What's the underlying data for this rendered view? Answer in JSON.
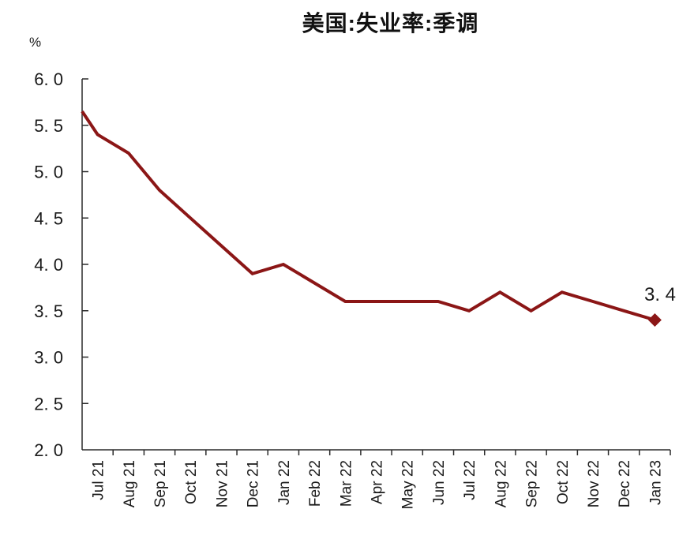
{
  "chart": {
    "title": "美国:失业率:季调",
    "unit_label": "%"
  },
  "chart_data": {
    "type": "line",
    "title": "美国:失业率:季调",
    "xlabel": "",
    "ylabel": "%",
    "categories": [
      "Jul 21",
      "Aug 21",
      "Sep 21",
      "Oct 21",
      "Nov 21",
      "Dec 21",
      "Jan 22",
      "Feb 22",
      "Mar 22",
      "Apr 22",
      "May 22",
      "Jun 22",
      "Jul 22",
      "Aug 22",
      "Sep 22",
      "Oct 22",
      "Nov 22",
      "Dec 22",
      "Jan 23"
    ],
    "series": [
      {
        "name": "美国:失业率:季调",
        "values": [
          5.4,
          5.2,
          4.8,
          4.5,
          4.2,
          3.9,
          4.0,
          3.8,
          3.6,
          3.6,
          3.6,
          3.6,
          3.5,
          3.7,
          3.5,
          3.7,
          3.6,
          3.5,
          3.4
        ]
      }
    ],
    "lead_in_edge_value": 5.65,
    "ylim": [
      2.0,
      6.0
    ],
    "y_tick_step": 0.5,
    "y_tick_values": [
      6.0,
      5.5,
      5.0,
      4.5,
      4.0,
      3.5,
      3.0,
      2.5,
      2.0
    ],
    "y_tick_labels": [
      "6. 0",
      "5. 5",
      "5. 0",
      "4. 5",
      "4. 0",
      "3. 5",
      "3. 0",
      "2. 5",
      "2. 0"
    ],
    "last_point_label": "3. 4",
    "last_point_marker": "diamond",
    "grid": false,
    "legend": false,
    "line_color": "#8B1616",
    "marker_color": "#8B1616",
    "axis_color": "#2b2b2b",
    "text_color": "#1a1a1a"
  }
}
